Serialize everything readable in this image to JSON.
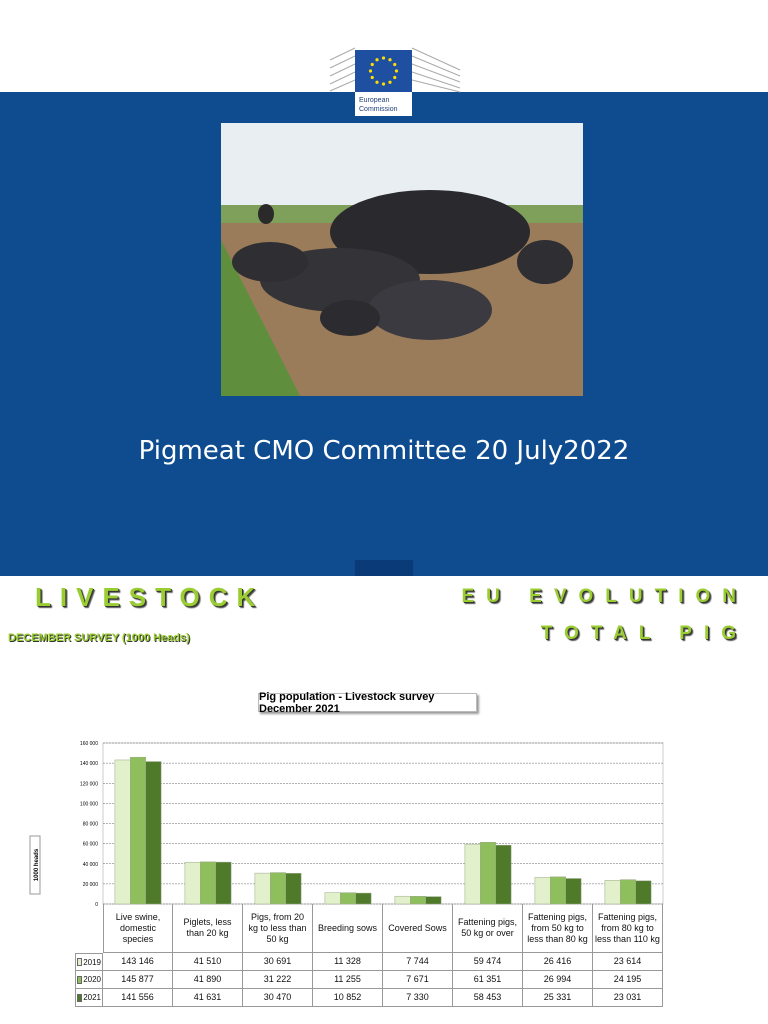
{
  "title_slide": {
    "logo_text": [
      "European",
      "Commission"
    ],
    "title": "Pigmeat CMO Committee 20 July2022"
  },
  "chart_slide": {
    "heading": "LIVESTOCK",
    "subheading": "DECEMBER SURVEY (1000 Heads)",
    "right_heading": [
      "EU EVOLUTION",
      "TOTAL PIG"
    ]
  },
  "chart_data": {
    "type": "bar",
    "title": "Pig population - Livestock survey December 2021",
    "y_label": "1000 heads",
    "categories": [
      "Live swine, domestic species",
      "Piglets, less than 20 kg",
      "Pigs, from 20 kg to less than 50 kg",
      "Breeding sows",
      "Covered Sows",
      "Fattening pigs, 50 kg or over",
      "Fattening pigs, from 50 kg to less than 80 kg",
      "Fattening pigs, from 80 kg to less than 110 kg"
    ],
    "series": [
      {
        "name": "2019",
        "color": "#e2f0cc",
        "values": [
          143146,
          41510,
          30691,
          11328,
          7744,
          59474,
          26416,
          23614
        ],
        "value_labels": [
          "143 146",
          "41 510",
          "30 691",
          "11 328",
          "7 744",
          "59 474",
          "26 416",
          "23 614"
        ]
      },
      {
        "name": "2020",
        "color": "#8fbf5c",
        "values": [
          145877,
          41890,
          31222,
          11255,
          7671,
          61351,
          26994,
          24195
        ],
        "value_labels": [
          "145 877",
          "41 890",
          "31 222",
          "11 255",
          "7 671",
          "61 351",
          "26 994",
          "24 195"
        ]
      },
      {
        "name": "2021",
        "color": "#4e7a2a",
        "values": [
          141556,
          41631,
          30470,
          10852,
          7330,
          58453,
          25331,
          23031
        ],
        "value_labels": [
          "141 556",
          "41 631",
          "30 470",
          "10 852",
          "7 330",
          "58 453",
          "25 331",
          "23 031"
        ]
      }
    ],
    "ylim": [
      0,
      160000
    ],
    "yticks": [
      0,
      {
        "value": 20000,
        "label": "20 000"
      },
      {
        "value": 40000,
        "label": "40 000"
      },
      {
        "value": 60000,
        "label": "60 000"
      },
      {
        "value": 80000,
        "label": "80 000"
      },
      {
        "value": 100000,
        "label": "100 000"
      },
      {
        "value": 120000,
        "label": "120 000"
      },
      {
        "value": 140000,
        "label": "140 000"
      },
      {
        "value": 160000,
        "label": "160 000"
      }
    ],
    "grid": true
  }
}
